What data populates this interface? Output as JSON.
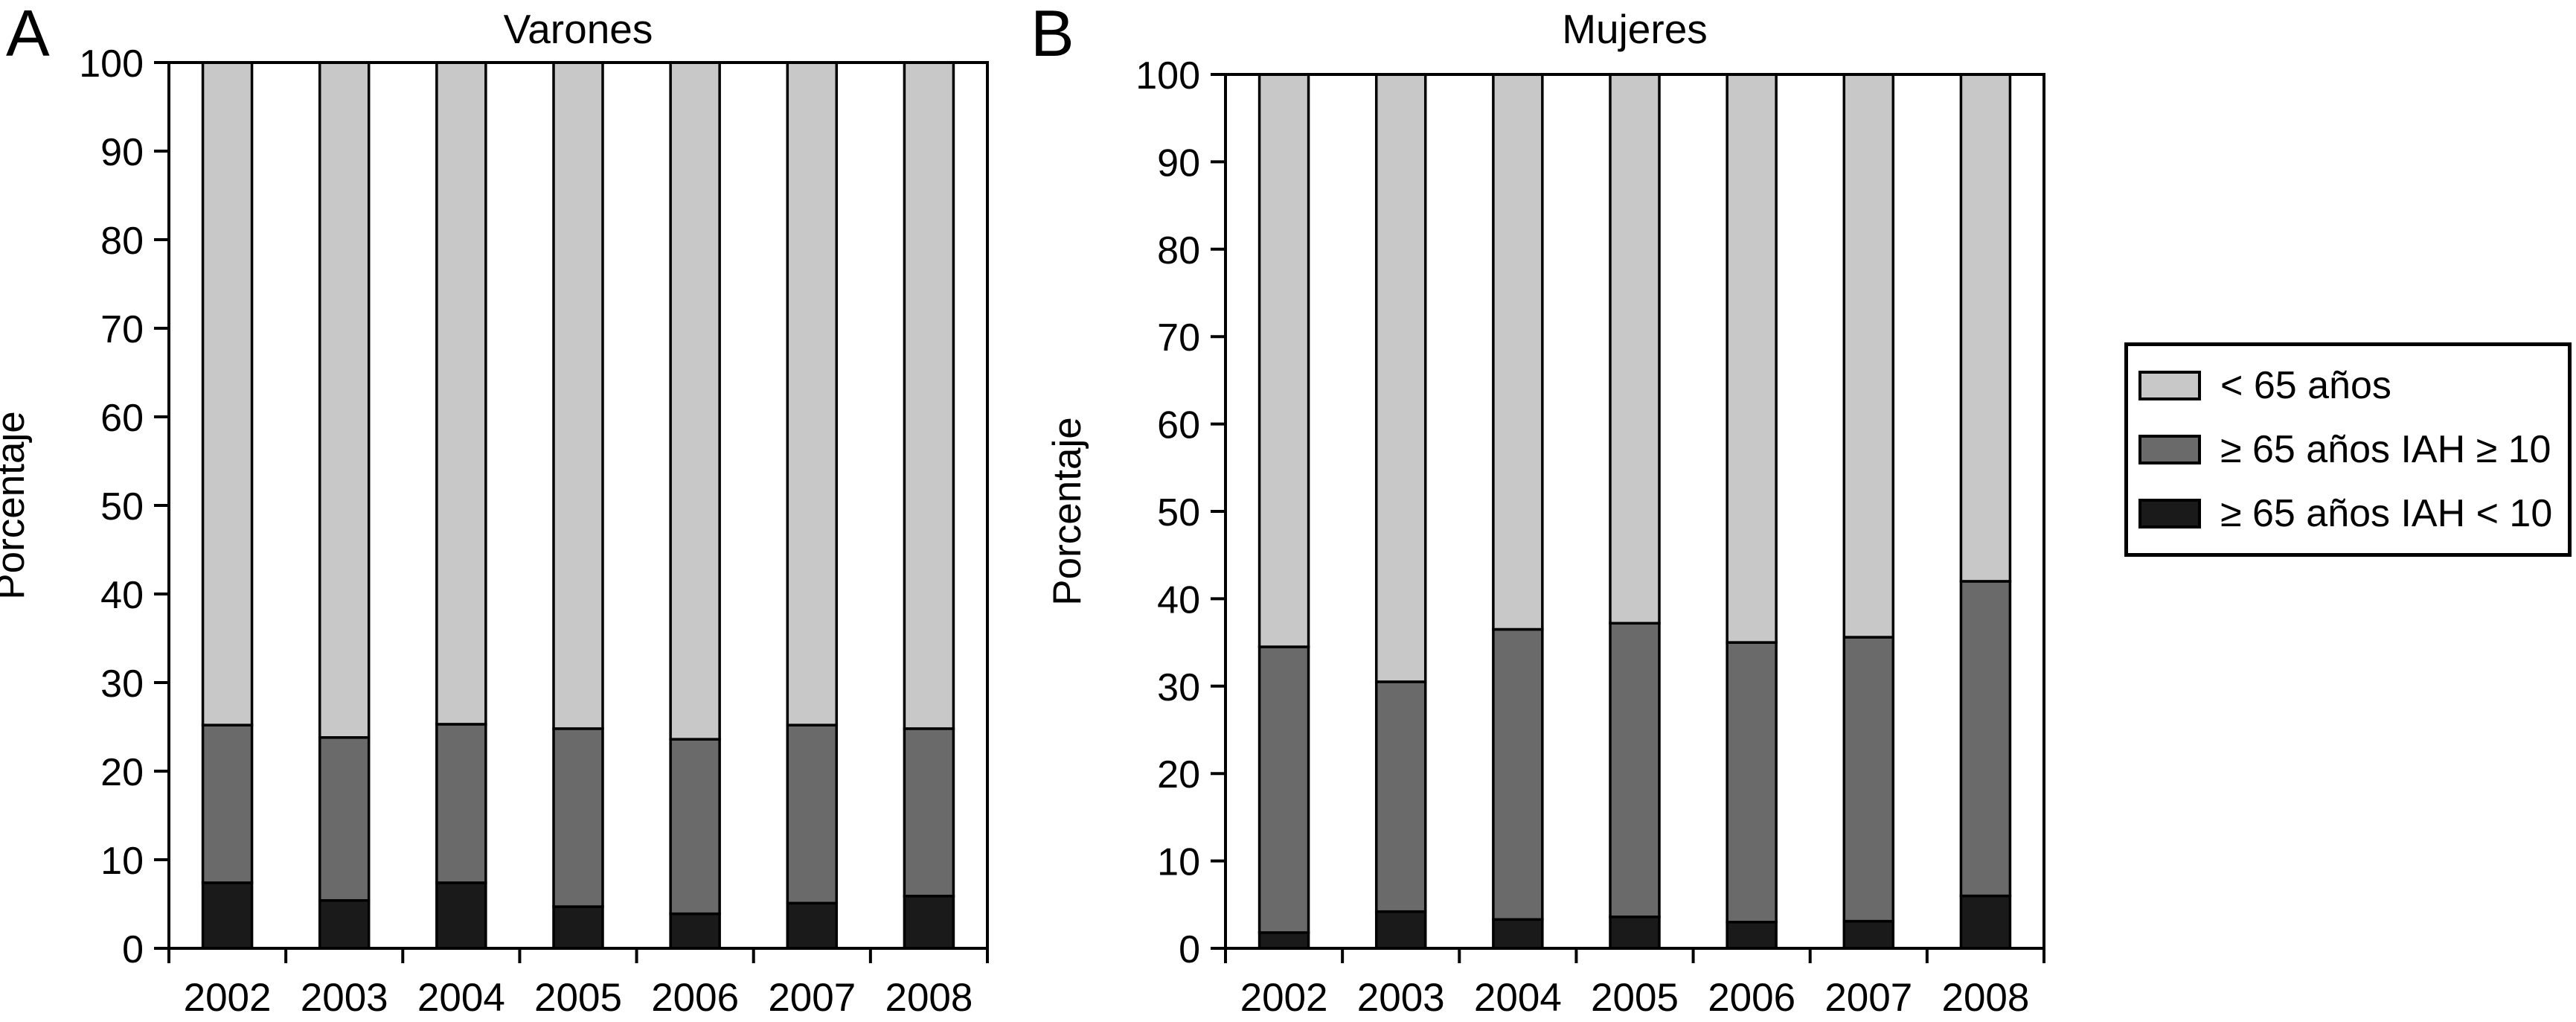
{
  "figure": {
    "background": "#ffffff"
  },
  "colors": {
    "light_gray": "#c8c8c8",
    "dark_gray": "#6a6a6a",
    "black": "#1a1a1a",
    "line": "#000000"
  },
  "legend": {
    "items": [
      {
        "label": "< 65 años",
        "color_key": "light_gray"
      },
      {
        "label": "≥ 65 años IAH ≥ 10",
        "color_key": "dark_gray"
      },
      {
        "label": "≥ 65 años IAH < 10",
        "color_key": "black"
      }
    ]
  },
  "chart_data": [
    {
      "type": "bar",
      "stacked": true,
      "panel_label": "A",
      "title": "Varones",
      "xlabel": "",
      "ylabel": "Porcentaje",
      "categories": [
        "2002",
        "2003",
        "2004",
        "2005",
        "2006",
        "2007",
        "2008"
      ],
      "series": [
        {
          "name": "≥ 65 años IAH < 10",
          "color_key": "black",
          "values": [
            7.4,
            5.4,
            7.4,
            4.7,
            3.9,
            5.1,
            5.9
          ]
        },
        {
          "name": "≥ 65 años IAH ≥ 10",
          "color_key": "dark_gray",
          "values": [
            17.8,
            18.4,
            17.9,
            20.1,
            19.7,
            20.1,
            18.9
          ]
        },
        {
          "name": "< 65 años",
          "color_key": "light_gray",
          "values": [
            74.8,
            76.2,
            74.7,
            75.2,
            76.4,
            74.8,
            75.2
          ]
        }
      ],
      "ylim": [
        0,
        100
      ],
      "ytick_step": 10,
      "grid": false,
      "legend_position": "outside-right"
    },
    {
      "type": "bar",
      "stacked": true,
      "panel_label": "B",
      "title": "Mujeres",
      "xlabel": "",
      "ylabel": "Porcentaje",
      "categories": [
        "2002",
        "2003",
        "2004",
        "2005",
        "2006",
        "2007",
        "2008"
      ],
      "series": [
        {
          "name": "≥ 65 años IAH < 10",
          "color_key": "black",
          "values": [
            1.8,
            4.2,
            3.3,
            3.6,
            3.0,
            3.1,
            6.0
          ]
        },
        {
          "name": "≥ 65 años IAH ≥ 10",
          "color_key": "dark_gray",
          "values": [
            32.7,
            26.3,
            33.2,
            33.6,
            32.0,
            32.5,
            36.0
          ]
        },
        {
          "name": "< 65 años",
          "color_key": "light_gray",
          "values": [
            65.5,
            69.5,
            63.5,
            62.8,
            65.0,
            64.4,
            58.0
          ]
        }
      ],
      "ylim": [
        0,
        100
      ],
      "ytick_step": 10,
      "grid": false,
      "legend_position": "outside-right"
    }
  ]
}
